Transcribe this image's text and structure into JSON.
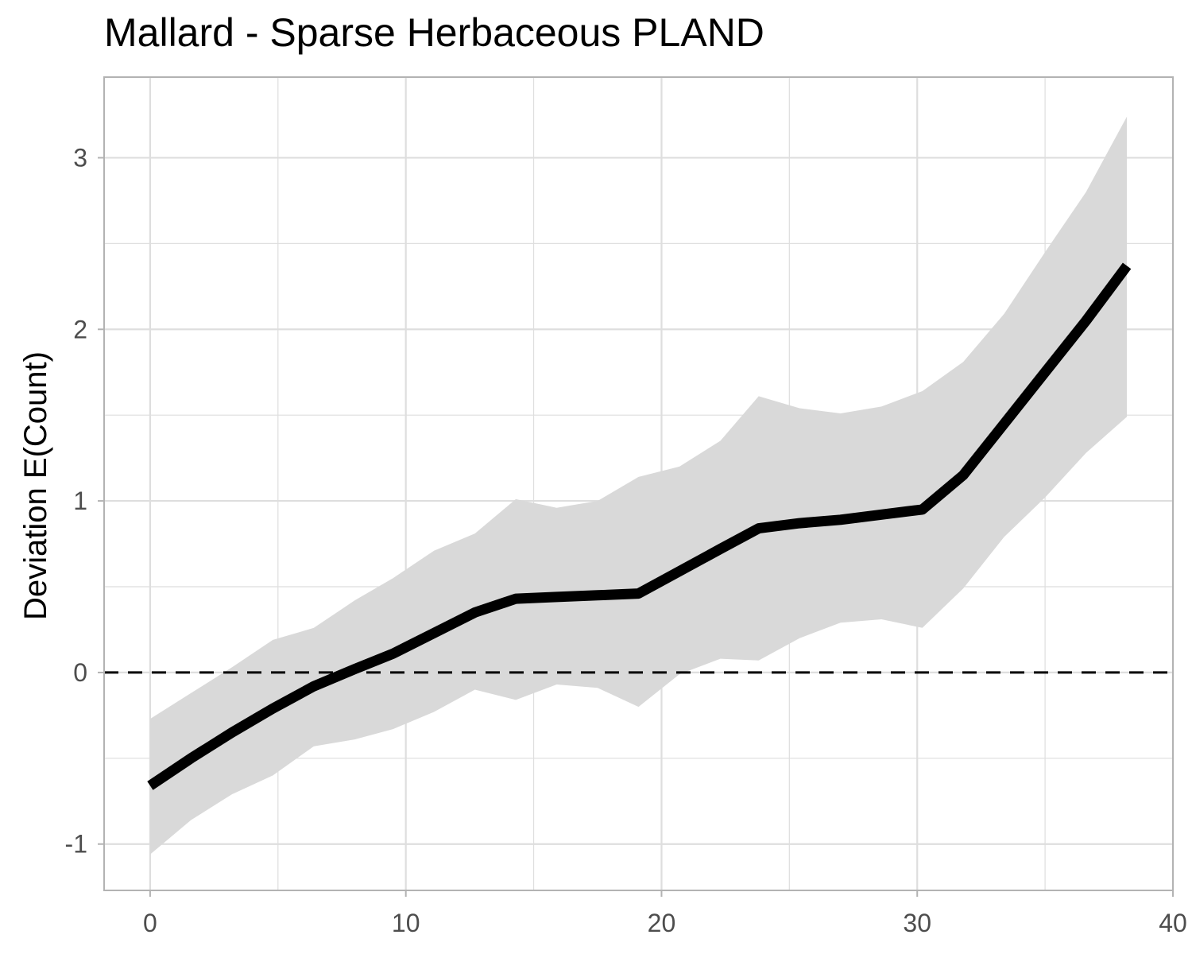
{
  "chart_data": {
    "type": "line",
    "title": "Mallard - Sparse Herbaceous PLAND",
    "xlabel": "",
    "ylabel": "Deviation E(Count)",
    "xlim": [
      -1.8,
      40
    ],
    "ylim": [
      -1.27,
      3.47
    ],
    "x_ticks": [
      0,
      10,
      20,
      30,
      40
    ],
    "x_tick_labels": [
      "0",
      "10",
      "20",
      "30",
      "40"
    ],
    "y_ticks": [
      -1,
      0,
      1,
      2,
      3
    ],
    "y_tick_labels": [
      "-1",
      "0",
      "1",
      "2",
      "3"
    ],
    "grid": true,
    "reference_line": {
      "y": 0,
      "style": "dashed"
    },
    "series": [
      {
        "x": [
          0,
          1.6,
          3.2,
          4.8,
          6.4,
          8.0,
          9.5,
          11.1,
          12.7,
          14.3,
          15.9,
          17.5,
          19.1,
          20.7,
          22.3,
          23.8,
          25.4,
          27.0,
          28.6,
          30.2,
          31.8,
          33.4,
          35.0,
          36.6,
          38.2
        ],
        "y": [
          -0.66,
          -0.5,
          -0.35,
          -0.21,
          -0.08,
          0.02,
          0.11,
          0.23,
          0.35,
          0.43,
          0.44,
          0.45,
          0.46,
          0.59,
          0.72,
          0.84,
          0.87,
          0.89,
          0.92,
          0.95,
          1.15,
          1.45,
          1.75,
          2.05,
          2.37
        ],
        "lower": [
          -1.06,
          -0.86,
          -0.71,
          -0.6,
          -0.43,
          -0.39,
          -0.33,
          -0.23,
          -0.1,
          -0.16,
          -0.07,
          -0.09,
          -0.2,
          -0.01,
          0.08,
          0.07,
          0.2,
          0.29,
          0.31,
          0.26,
          0.49,
          0.79,
          1.02,
          1.28,
          1.49
        ],
        "upper": [
          -0.27,
          -0.12,
          0.03,
          0.19,
          0.26,
          0.42,
          0.55,
          0.71,
          0.81,
          1.01,
          0.96,
          1.0,
          1.14,
          1.2,
          1.35,
          1.61,
          1.54,
          1.51,
          1.55,
          1.64,
          1.81,
          2.09,
          2.45,
          2.8,
          3.24
        ]
      }
    ],
    "colors": {
      "line": "#000000",
      "ribbon": "#d9d9d9",
      "grid": "#dedede",
      "border": "#b3b3b3"
    }
  }
}
